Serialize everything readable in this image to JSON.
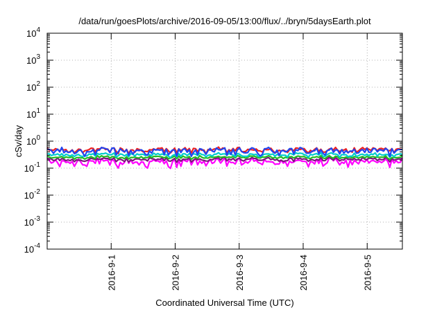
{
  "chart_data": {
    "type": "line",
    "title": "/data/run/goesPlots/archive/2016-09-05/13:00/flux/../bryn/5daysEarth.plot",
    "xlabel": "Coordinated Universal Time (UTC)",
    "ylabel": "cSv/day",
    "y_scale": "log",
    "ylim": [
      0.0001,
      10000
    ],
    "x_range_days": [
      0.0,
      5.55
    ],
    "y_ticks": [
      {
        "base": "10",
        "exp": "-4",
        "value": 0.0001
      },
      {
        "base": "10",
        "exp": "-3",
        "value": 0.001
      },
      {
        "base": "10",
        "exp": "-2",
        "value": 0.01
      },
      {
        "base": "10",
        "exp": "-1",
        "value": 0.1
      },
      {
        "base": "10",
        "exp": "0",
        "value": 1
      },
      {
        "base": "10",
        "exp": "1",
        "value": 10
      },
      {
        "base": "10",
        "exp": "2",
        "value": 100
      },
      {
        "base": "10",
        "exp": "3",
        "value": 1000
      },
      {
        "base": "10",
        "exp": "4",
        "value": 10000
      }
    ],
    "x_ticks": [
      {
        "label": "2016-9-1",
        "day": 1.0
      },
      {
        "label": "2016-9-2",
        "day": 2.0
      },
      {
        "label": "2016-9-3",
        "day": 3.0
      },
      {
        "label": "2016-9-4",
        "day": 4.0
      },
      {
        "label": "2016-9-5",
        "day": 5.0
      }
    ],
    "grid": true,
    "series": [
      {
        "color": "#ff00ff",
        "base_value": 0.17,
        "amplitude": 0.16
      },
      {
        "color": "#7a1a7a",
        "base_value": 0.21,
        "amplitude": 0.08
      },
      {
        "color": "#22bb22",
        "base_value": 0.25,
        "amplitude": 0.06
      },
      {
        "color": "#00cccc",
        "base_value": 0.31,
        "amplitude": 0.08
      },
      {
        "color": "#ee2020",
        "base_value": 0.47,
        "amplitude": 0.1
      },
      {
        "color": "#2244ee",
        "base_value": 0.43,
        "amplitude": 0.14
      }
    ]
  }
}
